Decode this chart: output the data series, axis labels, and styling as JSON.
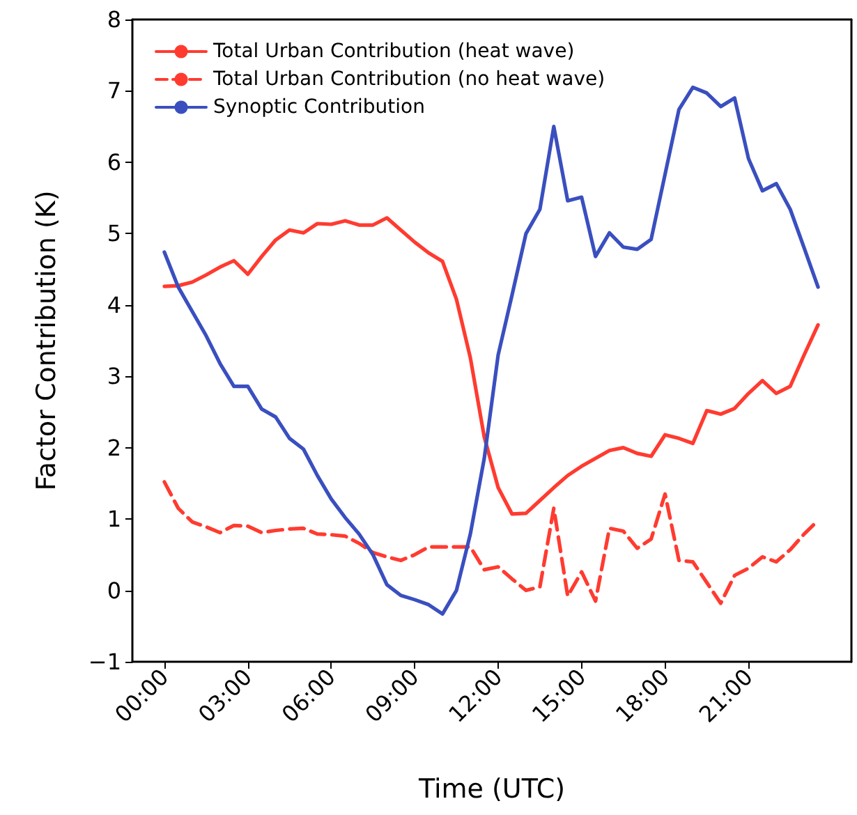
{
  "chart_data": {
    "type": "line",
    "xlabel": "Time (UTC)",
    "ylabel": "Factor Contribution (K)",
    "x": [
      0,
      0.5,
      1,
      1.5,
      2,
      2.5,
      3,
      3.5,
      4,
      4.5,
      5,
      5.5,
      6,
      6.5,
      7,
      7.5,
      8,
      8.5,
      9,
      9.5,
      10,
      10.5,
      11,
      11.5,
      12,
      12.5,
      13,
      13.5,
      14,
      14.5,
      15,
      15.5,
      16,
      16.5,
      17,
      17.5,
      18,
      18.5,
      19,
      19.5,
      20,
      20.5,
      21,
      21.5,
      22,
      22.5,
      23,
      23.5
    ],
    "series": [
      {
        "name": "Total Urban Contribution (heat wave)",
        "color": "#ff3b30",
        "line_style": "solid",
        "values": [
          4.26,
          4.27,
          4.32,
          4.42,
          4.53,
          4.62,
          4.43,
          4.68,
          4.91,
          5.05,
          5.01,
          5.14,
          5.13,
          5.18,
          5.12,
          5.12,
          5.22,
          5.05,
          4.88,
          4.73,
          4.61,
          4.08,
          3.26,
          2.15,
          1.44,
          1.07,
          1.08,
          1.26,
          1.44,
          1.61,
          1.74,
          1.85,
          1.96,
          2.0,
          1.92,
          1.88,
          2.18,
          2.13,
          2.06,
          2.52,
          2.47,
          2.55,
          2.76,
          2.94,
          2.76,
          2.86,
          3.3,
          3.72
        ]
      },
      {
        "name": "Total Urban Contribution (no heat wave)",
        "color": "#ff3b30",
        "line_style": "dashed",
        "values": [
          1.52,
          1.15,
          0.96,
          0.89,
          0.81,
          0.91,
          0.9,
          0.81,
          0.84,
          0.86,
          0.87,
          0.79,
          0.78,
          0.76,
          0.66,
          0.53,
          0.47,
          0.42,
          0.5,
          0.61,
          0.61,
          0.61,
          0.61,
          0.29,
          0.33,
          0.16,
          0.0,
          0.05,
          1.15,
          -0.08,
          0.26,
          -0.15,
          0.87,
          0.83,
          0.59,
          0.72,
          1.35,
          0.42,
          0.4,
          0.11,
          -0.18,
          0.21,
          0.31,
          0.47,
          0.4,
          0.57,
          0.79,
          0.98
        ]
      },
      {
        "name": "Synoptic Contribution",
        "color": "#3a4fbf",
        "line_style": "solid",
        "values": [
          4.74,
          4.25,
          3.91,
          3.57,
          3.18,
          2.86,
          2.86,
          2.54,
          2.43,
          2.13,
          1.98,
          1.61,
          1.28,
          1.02,
          0.79,
          0.5,
          0.08,
          -0.07,
          -0.13,
          -0.2,
          -0.33,
          0.0,
          0.79,
          1.85,
          3.3,
          4.14,
          5.0,
          5.34,
          6.5,
          5.46,
          5.51,
          4.68,
          5.01,
          4.81,
          4.78,
          4.92,
          5.83,
          6.74,
          7.05,
          6.97,
          6.78,
          6.9,
          6.05,
          5.6,
          5.7,
          5.34,
          4.8,
          4.25
        ]
      }
    ],
    "xlim": [
      -1.15,
      24.7
    ],
    "xticks": [
      {
        "value": 0,
        "label": "00:00"
      },
      {
        "value": 3,
        "label": "03:00"
      },
      {
        "value": 6,
        "label": "06:00"
      },
      {
        "value": 9,
        "label": "09:00"
      },
      {
        "value": 12,
        "label": "12:00"
      },
      {
        "value": 15,
        "label": "15:00"
      },
      {
        "value": 18,
        "label": "18:00"
      },
      {
        "value": 21,
        "label": "21:00"
      }
    ],
    "ylim": [
      -1,
      8
    ],
    "yticks": [
      -1,
      0,
      1,
      2,
      3,
      4,
      5,
      6,
      7,
      8
    ],
    "grid": false,
    "legend": "top left",
    "marker": "none"
  }
}
